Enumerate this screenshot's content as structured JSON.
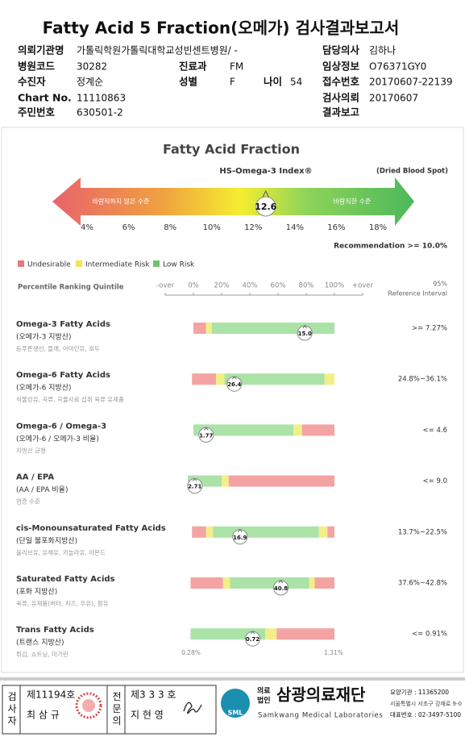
{
  "header": {
    "title": "Fatty Acid 5 Fraction(오메가) 검사결과보고서",
    "info": {
      "institution": {
        "label": "의뢰기관명",
        "value": "가톨릭학원가톨릭대학교성빈센트병원/ -"
      },
      "doctor": {
        "label": "담당의사",
        "value": "김하나"
      },
      "hospital_code": {
        "label": "병원코드",
        "value": "30282"
      },
      "department": {
        "label": "진료과",
        "value": "FM"
      },
      "clinical_info": {
        "label": "임상정보",
        "value": "O76371GY0"
      },
      "patient": {
        "label": "수진자",
        "value": "정계순"
      },
      "sex": {
        "label": "성별",
        "value": "F"
      },
      "age": {
        "label": "나이",
        "value": "54"
      },
      "receipt_no": {
        "label": "접수번호",
        "value": "20170607-22139"
      },
      "chart_no": {
        "label": "Chart No.",
        "value": "11110863"
      },
      "request_date": {
        "label": "검사의뢰",
        "value": "20170607"
      },
      "resident_no": {
        "label": "주민번호",
        "value": "630501-2"
      },
      "report": {
        "label": "결과보고"
      }
    }
  },
  "hs_index": {
    "section_title": "Fatty Acid Fraction",
    "title": "HS-Omega-3 Index®",
    "specimen": "(Dried Blood Spot)",
    "low_label": "바람직하지 않은 수준",
    "high_label": "바람직한 수준",
    "value": 12.6,
    "ticks": [
      {
        "value": 4,
        "label": "4%"
      },
      {
        "value": 6,
        "label": "6%"
      },
      {
        "value": 8,
        "label": "8%"
      },
      {
        "value": 10,
        "label": "10%"
      },
      {
        "value": 12,
        "label": "12%"
      },
      {
        "value": 14,
        "label": "14%"
      },
      {
        "value": 16,
        "label": "16%"
      },
      {
        "value": 18,
        "label": "18%"
      }
    ],
    "recommendation": "Recommendation  >= 10.0%"
  },
  "legend": [
    {
      "name": "Undesirable",
      "color": "#e9777c"
    },
    {
      "name": "Intermediate Risk",
      "color": "#ece65a"
    },
    {
      "name": "Low Risk",
      "color": "#6fc36f"
    }
  ],
  "percentile": {
    "title": "Percentile Ranking Quintile",
    "ticks": [
      {
        "value": -20,
        "label": "-over"
      },
      {
        "value": 0,
        "label": "0%"
      },
      {
        "value": 20,
        "label": "20%"
      },
      {
        "value": 40,
        "label": "40%"
      },
      {
        "value": 60,
        "label": "60%"
      },
      {
        "value": 80,
        "label": "80%"
      },
      {
        "value": 100,
        "label": "100%"
      },
      {
        "value": 120,
        "label": "+over"
      }
    ],
    "reference_title": [
      "95%",
      "Reference Interval"
    ]
  },
  "items": [
    {
      "name": "Omega-3 Fatty Acids",
      "korean": "(오메가-3 지방산)",
      "foods": "등푸른생선, 들깨, 아마인유, 호두",
      "value": "15.0",
      "percentile": 79,
      "reference": ">= 7.27%",
      "zones": [
        {
          "color": "#f4a3a3",
          "from": 0,
          "to": 9
        },
        {
          "color": "#f2ef88",
          "from": 9,
          "to": 13
        },
        {
          "color": "#abe2a8",
          "from": 13,
          "to": 100
        }
      ]
    },
    {
      "name": "Omega-6 Fatty Acids",
      "korean": "(오메가-6 지방산)",
      "foods": "식물성유, 곡류, 곡물사료 섭취 육류 유제품",
      "value": "26.4",
      "percentile": 29,
      "reference": "24.8%~36.1%",
      "zones": [
        {
          "color": "#f4a3a3",
          "from": -1,
          "to": 16
        },
        {
          "color": "#f2ef88",
          "from": 16,
          "to": 22
        },
        {
          "color": "#abe2a8",
          "from": 22,
          "to": 93
        },
        {
          "color": "#f2ef88",
          "from": 93,
          "to": 100
        }
      ]
    },
    {
      "name": "Omega-6 / Omega-3",
      "korean": "(오메가-6 / 오메가-3 비율)",
      "foods": "지방산 균형",
      "value": "1.77",
      "percentile": 9,
      "reference": "<= 4.6",
      "zones": [
        {
          "color": "#abe2a8",
          "from": 0,
          "to": 71
        },
        {
          "color": "#f2ef88",
          "from": 71,
          "to": 77
        },
        {
          "color": "#f4a3a3",
          "from": 77,
          "to": 100
        }
      ]
    },
    {
      "name": "AA / EPA",
      "korean": "(AA / EPA 비율)",
      "foods": "염증 수준",
      "value": "2.71",
      "percentile": 1,
      "reference": "<= 9.0",
      "zones": [
        {
          "color": "#abe2a8",
          "from": -4,
          "to": 20
        },
        {
          "color": "#f2ef88",
          "from": 20,
          "to": 25
        },
        {
          "color": "#f4a3a3",
          "from": 25,
          "to": 100
        }
      ]
    },
    {
      "name": "cis-Monounsaturated Fatty Acids",
      "korean": "(단일 불포화지방산)",
      "foods": "올리브유, 유채유, 카놀라유, 아몬드",
      "value": "16.9",
      "percentile": 33,
      "reference": "13.7%~22.5%",
      "zones": [
        {
          "color": "#f4a3a3",
          "from": -1,
          "to": 9
        },
        {
          "color": "#f2ef88",
          "from": 9,
          "to": 14
        },
        {
          "color": "#abe2a8",
          "from": 14,
          "to": 89
        },
        {
          "color": "#f2ef88",
          "from": 89,
          "to": 95
        },
        {
          "color": "#f4a3a3",
          "from": 95,
          "to": 100
        }
      ]
    },
    {
      "name": "Saturated Fatty Acids",
      "korean": "(포화 지방산)",
      "foods": "육류, 유제품(버터, 치즈, 우유), 팜유",
      "value": "40.8",
      "percentile": 62,
      "reference": "37.6%~42.8%",
      "zones": [
        {
          "color": "#f4a3a3",
          "from": -2,
          "to": 21
        },
        {
          "color": "#f2ef88",
          "from": 21,
          "to": 26
        },
        {
          "color": "#abe2a8",
          "from": 26,
          "to": 82
        },
        {
          "color": "#f2ef88",
          "from": 82,
          "to": 86
        },
        {
          "color": "#f4a3a3",
          "from": 86,
          "to": 100
        }
      ]
    },
    {
      "name": "Trans Fatty Acids",
      "korean": "(트랜스 지방산)",
      "foods": "튀김, 쇼트닝, 마가린",
      "value": "0.72",
      "percentile": 42,
      "reference": "<= 0.91%",
      "zones": [
        {
          "color": "#abe2a8",
          "from": -2,
          "to": 51
        },
        {
          "color": "#f2ef88",
          "from": 51,
          "to": 59
        },
        {
          "color": "#f4a3a3",
          "from": 59,
          "to": 100
        }
      ],
      "scale_labels": [
        "0.28%",
        "1.31%"
      ]
    }
  ],
  "footer": {
    "examiner": {
      "title": "검사자",
      "number": "제11194호",
      "name": "최 삼 규"
    },
    "specialist": {
      "title": "전문의",
      "number": "제3 3 3 호",
      "name": "지 현 영"
    },
    "logo": "SML",
    "corp": [
      "의료",
      "법인"
    ],
    "org": "삼광의료재단",
    "org_en": "Samkwang Medical Laboratories",
    "code": "요양기관 : 11365200",
    "address": "서울특별시 서초구 강재로 9-0",
    "phone": "대표번호 : 02-3497-5100"
  }
}
